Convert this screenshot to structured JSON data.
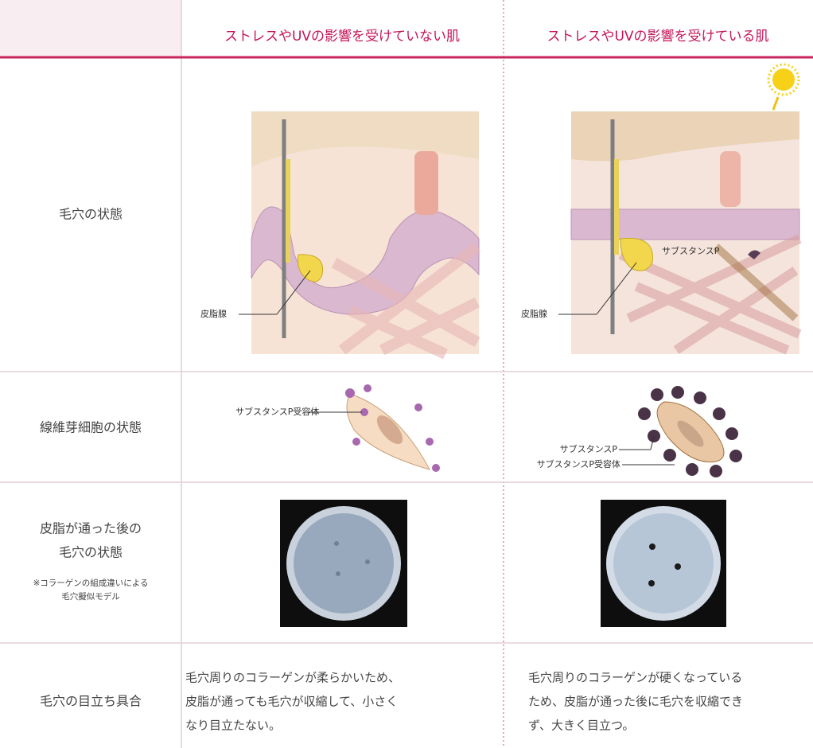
{
  "table": {
    "columns": [
      "ストレスやUVの影響を受けていない肌",
      "ストレスやUVの影響を受けている肌"
    ],
    "rows": [
      {
        "label": [
          "毛穴の状態"
        ],
        "left_annotations": [
          "皮脂腺"
        ],
        "right_annotations": [
          "皮脂腺",
          "サブスタンスP"
        ]
      },
      {
        "label": [
          "線維芽細胞の状態"
        ],
        "left_annotations": [
          "サブスタンスP受容体"
        ],
        "right_annotations": [
          "サブスタンスP",
          "サブスタンスP受容体"
        ]
      },
      {
        "label": [
          "皮脂が通った後の",
          "毛穴の状態"
        ],
        "note": [
          "※コラーゲンの組成違いによる",
          "毛穴擬似モデル"
        ]
      },
      {
        "label": [
          "毛穴の目立ち具合"
        ],
        "left_text": [
          "毛穴周りのコラーゲンが柔らかいため、",
          "皮脂が通っても毛穴が収縮して、小さく",
          "なり目立たない。"
        ],
        "right_text": [
          "毛穴周りのコラーゲンが硬くなっている",
          "ため、皮脂が通った後に毛穴を収縮でき",
          "ず、大きく目立つ。"
        ]
      }
    ]
  }
}
